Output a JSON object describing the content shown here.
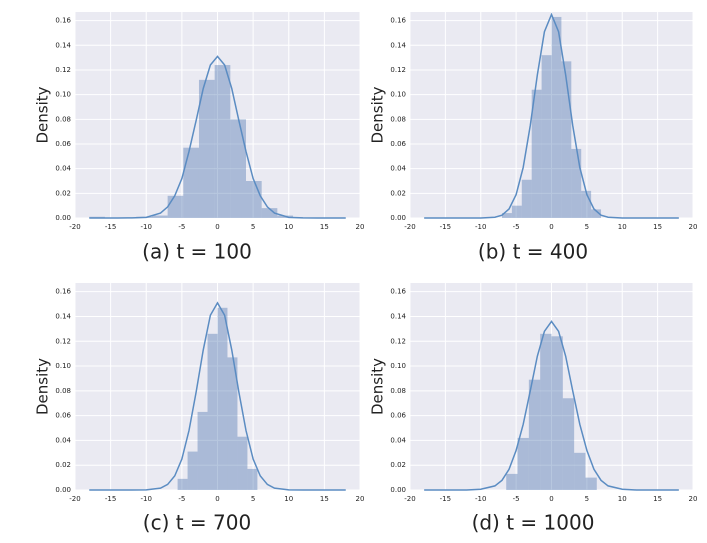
{
  "chart_data": [
    {
      "type": "histogram",
      "title": "(a) t = 100",
      "ylabel": "Density",
      "bins": [
        -18.0,
        -15.8,
        -13.6,
        -11.4,
        -9.2,
        -7.0,
        -4.8,
        -2.6,
        -0.4,
        1.8,
        4.0,
        6.2,
        8.4,
        10.6
      ],
      "values": [
        0.001,
        0,
        0,
        0.001,
        0.002,
        0.018,
        0.057,
        0.112,
        0.124,
        0.08,
        0.03,
        0.008,
        0.002
      ],
      "kde": {
        "x": [
          -18,
          -14,
          -12,
          -10,
          -8,
          -7,
          -6,
          -5,
          -4,
          -3,
          -2,
          -1,
          0,
          1,
          2,
          3,
          4,
          5,
          6,
          7,
          8,
          10,
          12,
          14,
          18
        ],
        "values": [
          0,
          0,
          0.0001,
          0.0005,
          0.004,
          0.009,
          0.018,
          0.032,
          0.054,
          0.079,
          0.105,
          0.124,
          0.131,
          0.124,
          0.105,
          0.079,
          0.054,
          0.032,
          0.018,
          0.009,
          0.004,
          0.0005,
          0.0001,
          0,
          0
        ]
      },
      "color": "#4c72b0",
      "alpha": 0.4,
      "line_color": "#5b8cc2",
      "background": "#eaeaf2",
      "grid": true,
      "xlim": [
        -20,
        20
      ],
      "ylim": [
        0,
        0.167
      ],
      "xticks": [
        -20,
        -15,
        -10,
        -5,
        0,
        5,
        10,
        15,
        20
      ],
      "yticks": [
        {
          "value": 0,
          "label": "0.00"
        },
        {
          "value": 0.02,
          "label": "0.02"
        },
        {
          "value": 0.04,
          "label": "0.04"
        },
        {
          "value": 0.06,
          "label": "0.06"
        },
        {
          "value": 0.08,
          "label": "0.08"
        },
        {
          "value": 0.1,
          "label": "0.10"
        },
        {
          "value": 0.12,
          "label": "0.12"
        },
        {
          "value": 0.14,
          "label": "0.14"
        },
        {
          "value": 0.16,
          "label": "0.16"
        }
      ]
    },
    {
      "type": "histogram",
      "title": "(b) t = 400",
      "ylabel": "Density",
      "bins": [
        -7.0,
        -5.6,
        -4.2,
        -2.8,
        -1.4,
        0,
        1.4,
        2.8,
        4.2,
        5.6,
        7.0
      ],
      "values": [
        0.004,
        0.01,
        0.031,
        0.104,
        0.132,
        0.163,
        0.127,
        0.056,
        0.022,
        0.007
      ],
      "kde": {
        "x": [
          -18,
          -14,
          -12,
          -10,
          -8,
          -7,
          -6,
          -5,
          -4,
          -3,
          -2,
          -1,
          0,
          1,
          2,
          3,
          4,
          5,
          6,
          7,
          8,
          10,
          12,
          14,
          18
        ],
        "values": [
          0,
          0,
          0,
          0,
          0.0006,
          0.0023,
          0.0073,
          0.019,
          0.041,
          0.075,
          0.116,
          0.151,
          0.165,
          0.151,
          0.116,
          0.075,
          0.041,
          0.019,
          0.0073,
          0.0023,
          0.0006,
          0,
          0,
          0,
          0
        ]
      },
      "color": "#4c72b0",
      "alpha": 0.4,
      "line_color": "#5b8cc2",
      "background": "#eaeaf2",
      "grid": true,
      "xlim": [
        -20,
        20
      ],
      "ylim": [
        0,
        0.167
      ],
      "xticks": [
        -20,
        -15,
        -10,
        -5,
        0,
        5,
        10,
        15,
        20
      ],
      "yticks": [
        {
          "value": 0,
          "label": "0.00"
        },
        {
          "value": 0.02,
          "label": "0.02"
        },
        {
          "value": 0.04,
          "label": "0.04"
        },
        {
          "value": 0.06,
          "label": "0.06"
        },
        {
          "value": 0.08,
          "label": "0.08"
        },
        {
          "value": 0.1,
          "label": "0.10"
        },
        {
          "value": 0.12,
          "label": "0.12"
        },
        {
          "value": 0.14,
          "label": "0.14"
        },
        {
          "value": 0.16,
          "label": "0.16"
        }
      ]
    },
    {
      "type": "histogram",
      "title": "(c) t = 700",
      "ylabel": "Density",
      "bins": [
        -5.6,
        -4.2,
        -2.8,
        -1.4,
        0,
        1.4,
        2.8,
        4.2,
        5.6
      ],
      "values": [
        0.009,
        0.031,
        0.063,
        0.126,
        0.147,
        0.107,
        0.043,
        0.017
      ],
      "kde": {
        "x": [
          -18,
          -14,
          -12,
          -10,
          -8,
          -7,
          -6,
          -5,
          -4,
          -3,
          -2,
          -1,
          0,
          1,
          2,
          3,
          4,
          5,
          6,
          7,
          8,
          10,
          12,
          14,
          18
        ],
        "values": [
          0,
          0,
          0,
          0.0001,
          0.0015,
          0.0045,
          0.0114,
          0.025,
          0.048,
          0.079,
          0.113,
          0.141,
          0.151,
          0.141,
          0.113,
          0.079,
          0.048,
          0.025,
          0.0114,
          0.0045,
          0.0015,
          0.0001,
          0,
          0,
          0
        ]
      },
      "color": "#4c72b0",
      "alpha": 0.4,
      "line_color": "#5b8cc2",
      "background": "#eaeaf2",
      "grid": true,
      "xlim": [
        -20,
        20
      ],
      "ylim": [
        0,
        0.167
      ],
      "xticks": [
        -20,
        -15,
        -10,
        -5,
        0,
        5,
        10,
        15,
        20
      ],
      "yticks": [
        {
          "value": 0,
          "label": "0.00"
        },
        {
          "value": 0.02,
          "label": "0.02"
        },
        {
          "value": 0.04,
          "label": "0.04"
        },
        {
          "value": 0.06,
          "label": "0.06"
        },
        {
          "value": 0.08,
          "label": "0.08"
        },
        {
          "value": 0.1,
          "label": "0.10"
        },
        {
          "value": 0.12,
          "label": "0.12"
        },
        {
          "value": 0.14,
          "label": "0.14"
        },
        {
          "value": 0.16,
          "label": "0.16"
        }
      ]
    },
    {
      "type": "histogram",
      "title": "(d) t = 1000",
      "ylabel": "Density",
      "bins": [
        -6.4,
        -4.8,
        -3.2,
        -1.6,
        0,
        1.6,
        3.2,
        4.8,
        6.4
      ],
      "values": [
        0.013,
        0.042,
        0.089,
        0.126,
        0.124,
        0.074,
        0.03,
        0.01
      ],
      "kde": {
        "x": [
          -18,
          -14,
          -12,
          -10,
          -8,
          -7,
          -6,
          -5,
          -4,
          -3,
          -2,
          -1,
          0,
          1,
          2,
          3,
          4,
          5,
          6,
          7,
          8,
          10,
          12,
          14,
          18
        ],
        "values": [
          0,
          0,
          0,
          0.0006,
          0.0033,
          0.0078,
          0.0167,
          0.032,
          0.053,
          0.08,
          0.108,
          0.128,
          0.136,
          0.128,
          0.108,
          0.08,
          0.053,
          0.032,
          0.0167,
          0.0078,
          0.0033,
          0.0006,
          0,
          0,
          0
        ]
      },
      "color": "#4c72b0",
      "alpha": 0.4,
      "line_color": "#5b8cc2",
      "background": "#eaeaf2",
      "grid": true,
      "xlim": [
        -20,
        20
      ],
      "ylim": [
        0,
        0.167
      ],
      "xticks": [
        -20,
        -15,
        -10,
        -5,
        0,
        5,
        10,
        15,
        20
      ],
      "yticks": [
        {
          "value": 0,
          "label": "0.00"
        },
        {
          "value": 0.02,
          "label": "0.02"
        },
        {
          "value": 0.04,
          "label": "0.04"
        },
        {
          "value": 0.06,
          "label": "0.06"
        },
        {
          "value": 0.08,
          "label": "0.08"
        },
        {
          "value": 0.1,
          "label": "0.10"
        },
        {
          "value": 0.12,
          "label": "0.12"
        },
        {
          "value": 0.14,
          "label": "0.14"
        },
        {
          "value": 0.16,
          "label": "0.16"
        }
      ]
    }
  ]
}
